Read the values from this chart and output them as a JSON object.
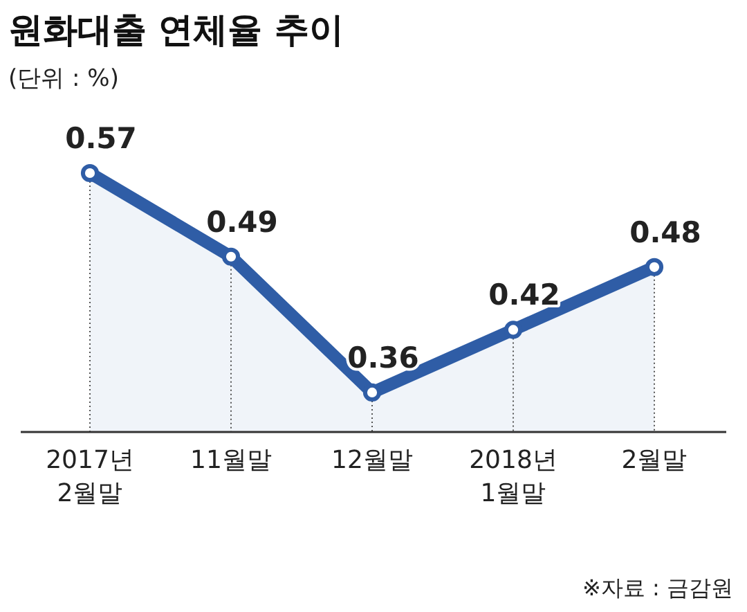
{
  "chart_data": {
    "type": "area",
    "title": "원화대출 연체율 추이",
    "subtitle": "(단위 : %)",
    "annotations": [
      "※자료 : 금감원"
    ],
    "categories": [
      "2017년\n2월말",
      "11월말",
      "12월말",
      "2018년\n1월말",
      "2월말"
    ],
    "series": [
      {
        "color": "#2f5da6",
        "values": [
          0.57,
          0.49,
          0.36,
          0.42,
          0.48
        ]
      }
    ],
    "data_labels": true,
    "marker": "circle"
  }
}
